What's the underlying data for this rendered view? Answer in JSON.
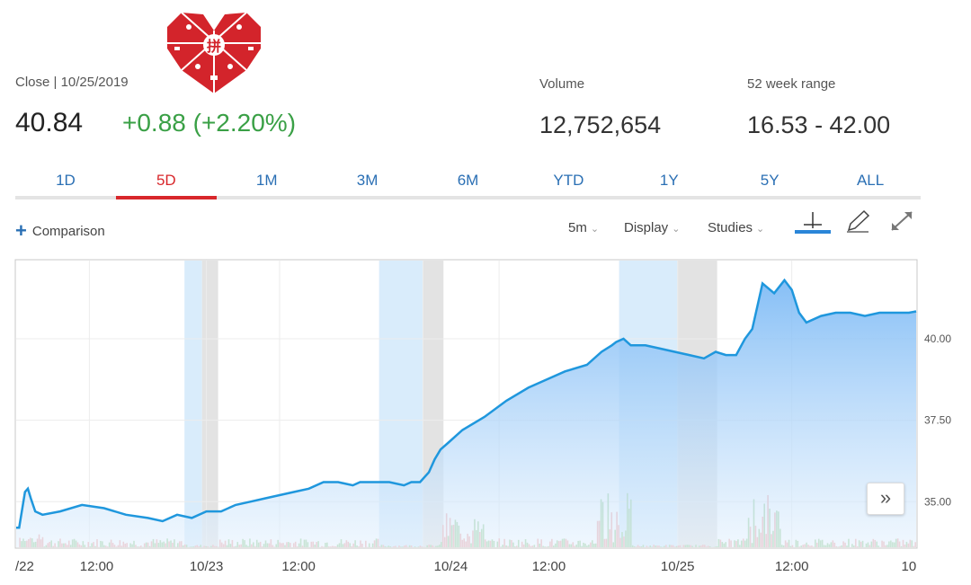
{
  "quote": {
    "close_label": "Close | 10/25/2019",
    "close_price": "40.84",
    "change": "+0.88 (+2.20%)",
    "volume_label": "Volume",
    "volume_value": "12,752,654",
    "range_label": "52 week range",
    "range_value": "16.53 - 42.00"
  },
  "tabs": [
    "1D",
    "5D",
    "1M",
    "3M",
    "6M",
    "YTD",
    "1Y",
    "5Y",
    "ALL"
  ],
  "active_tab": "5D",
  "toolbar": {
    "comparison": "Comparison",
    "interval": "5m",
    "display": "Display",
    "studies": "Studies"
  },
  "icons": {
    "logo": "pinduoduo-heart-logo",
    "crosshair": "crosshair-icon",
    "draw": "pencil-icon",
    "expand": "expand-icon",
    "next": "double-chevron-right-icon"
  },
  "colors": {
    "accent": "#2a6fb4",
    "active": "#d8272b",
    "positive": "#3aa046",
    "line": "#1f97dd",
    "logo_red": "#d3242b"
  },
  "chart_data": {
    "type": "area",
    "x_tick_labels": [
      "/22",
      "12:00",
      "10/23",
      "12:00",
      "10/24",
      "12:00",
      "10/25",
      "12:00",
      "10"
    ],
    "y_tick_labels": [
      "40.00",
      "37.50",
      "35.00"
    ],
    "ylim": [
      33.6,
      42.4
    ],
    "grid": true,
    "price_series": [
      [
        0,
        34.2
      ],
      [
        0.02,
        34.2
      ],
      [
        0.06,
        35.3
      ],
      [
        0.08,
        35.4
      ],
      [
        0.1,
        35.1
      ],
      [
        0.13,
        34.7
      ],
      [
        0.18,
        34.6
      ],
      [
        0.3,
        34.7
      ],
      [
        0.45,
        34.9
      ],
      [
        0.6,
        34.8
      ],
      [
        0.75,
        34.6
      ],
      [
        0.9,
        34.5
      ],
      [
        1.0,
        34.4
      ],
      [
        1.1,
        34.6
      ],
      [
        1.2,
        34.5
      ],
      [
        1.3,
        34.7
      ],
      [
        1.4,
        34.7
      ],
      [
        1.5,
        34.9
      ],
      [
        1.6,
        35.0
      ],
      [
        1.7,
        35.1
      ],
      [
        1.8,
        35.2
      ],
      [
        1.9,
        35.3
      ],
      [
        2.0,
        35.4
      ],
      [
        2.1,
        35.6
      ],
      [
        2.2,
        35.6
      ],
      [
        2.3,
        35.5
      ],
      [
        2.35,
        35.6
      ],
      [
        2.45,
        35.6
      ],
      [
        2.55,
        35.6
      ],
      [
        2.65,
        35.5
      ],
      [
        2.7,
        35.6
      ],
      [
        2.76,
        35.6
      ],
      [
        2.82,
        35.9
      ],
      [
        2.86,
        36.3
      ],
      [
        2.9,
        36.6
      ],
      [
        2.95,
        36.8
      ],
      [
        3.05,
        37.2
      ],
      [
        3.2,
        37.6
      ],
      [
        3.35,
        38.1
      ],
      [
        3.5,
        38.5
      ],
      [
        3.6,
        38.7
      ],
      [
        3.75,
        39.0
      ],
      [
        3.9,
        39.2
      ],
      [
        4.0,
        39.6
      ],
      [
        4.07,
        39.8
      ],
      [
        4.1,
        39.9
      ],
      [
        4.15,
        40.0
      ],
      [
        4.2,
        39.8
      ],
      [
        4.3,
        39.8
      ],
      [
        4.4,
        39.7
      ],
      [
        4.5,
        39.6
      ],
      [
        4.6,
        39.5
      ],
      [
        4.7,
        39.4
      ],
      [
        4.78,
        39.6
      ],
      [
        4.85,
        39.5
      ],
      [
        4.92,
        39.5
      ],
      [
        4.98,
        40.0
      ],
      [
        5.03,
        40.3
      ],
      [
        5.1,
        41.7
      ],
      [
        5.18,
        41.4
      ],
      [
        5.25,
        41.8
      ],
      [
        5.3,
        41.5
      ],
      [
        5.35,
        40.8
      ],
      [
        5.4,
        40.5
      ],
      [
        5.5,
        40.7
      ],
      [
        5.6,
        40.8
      ],
      [
        5.7,
        40.8
      ],
      [
        5.8,
        40.7
      ],
      [
        5.9,
        40.8
      ],
      [
        6.0,
        40.8
      ],
      [
        6.1,
        40.8
      ],
      [
        6.15,
        40.84
      ]
    ]
  }
}
